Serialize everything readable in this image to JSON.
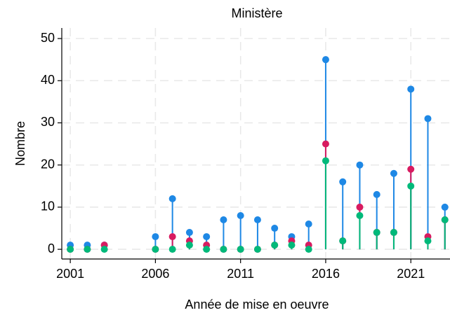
{
  "chart_data": {
    "type": "lollipop",
    "title": "Ministère",
    "xlabel": "Année de mise en oeuvre",
    "ylabel": "Nombre",
    "x": [
      2001,
      2002,
      2003,
      2004,
      2005,
      2006,
      2007,
      2008,
      2009,
      2010,
      2011,
      2012,
      2013,
      2014,
      2015,
      2016,
      2017,
      2018,
      2019,
      2020,
      2021,
      2022,
      2023
    ],
    "series": [
      {
        "color": "#1e88e5",
        "values": [
          1,
          1,
          1,
          null,
          null,
          3,
          12,
          4,
          3,
          7,
          8,
          7,
          5,
          3,
          6,
          45,
          16,
          20,
          13,
          18,
          38,
          31,
          10
        ]
      },
      {
        "color": "#d81b60",
        "values": [
          0,
          0,
          1,
          null,
          null,
          0,
          3,
          2,
          1,
          0,
          0,
          0,
          1,
          2,
          1,
          25,
          2,
          10,
          4,
          4,
          19,
          3,
          7
        ]
      },
      {
        "color": "#00b97a",
        "values": [
          0,
          0,
          0,
          null,
          null,
          0,
          0,
          1,
          0,
          0,
          0,
          0,
          1,
          1,
          0,
          21,
          2,
          8,
          4,
          4,
          15,
          2,
          7
        ]
      }
    ],
    "xlim": [
      2000.5,
      2023.3
    ],
    "ylim": [
      -2.3,
      52.5
    ],
    "xticks": [
      2001,
      2006,
      2011,
      2016,
      2021
    ],
    "yticks": [
      0,
      10,
      20,
      30,
      40,
      50
    ],
    "grid": true
  }
}
